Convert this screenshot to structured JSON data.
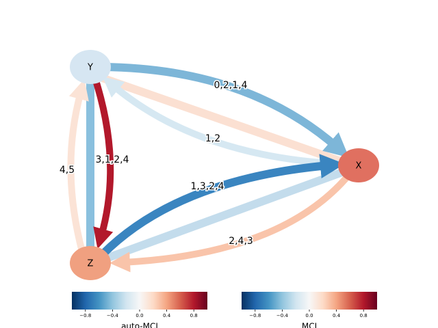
{
  "nodes": [
    {
      "label": "Y"
    },
    {
      "label": "X"
    },
    {
      "label": "Z"
    }
  ],
  "edges": [
    {
      "label": "0,2,1,4"
    },
    {
      "label": "1,2"
    },
    {
      "label": "3,1,2,4"
    },
    {
      "label": "4,5"
    },
    {
      "label": "1,3,2,4"
    },
    {
      "label": "2,4,3"
    }
  ],
  "colorbars": [
    {
      "label": "auto-MCI",
      "ticks": [
        "−0.8",
        "−0.4",
        "0.0",
        "0.4",
        "0.8"
      ]
    },
    {
      "label": "MCI",
      "ticks": [
        "−0.8",
        "−0.4",
        "0.0",
        "0.4",
        "0.8"
      ]
    }
  ]
}
